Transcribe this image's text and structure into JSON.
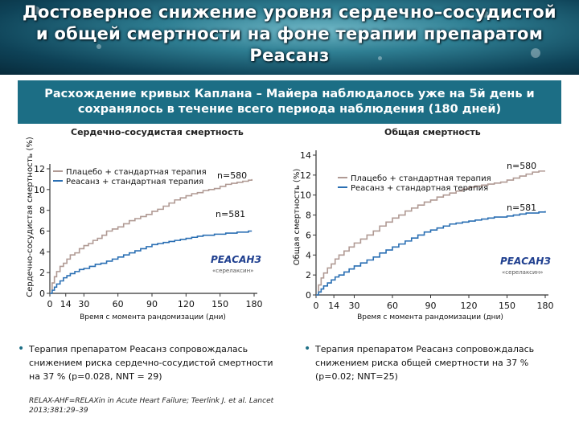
{
  "header": {
    "title_lines": [
      "Достоверное снижение уровня сердечно–сосудистой",
      "и общей смертности на фоне терапии препаратом",
      "Реасанз"
    ]
  },
  "banner": {
    "lines": [
      "Расхождение кривых Каплана – Майера наблюдалось уже на 5й день и",
      "сохранялось в течение всего периода наблюдения (180 дней)"
    ]
  },
  "colors": {
    "placebo": "#b09a94",
    "reasanz": "#2a6fb3",
    "banner": "#1c6e85",
    "axis": "#333333"
  },
  "chart_data": [
    {
      "type": "line",
      "title": "Сердечно-сосудистая смертность",
      "ylabel": "Сердечно-сосудистая смертность (%)",
      "xlabel": "Время с момента рандомизации (дни)",
      "xlim": [
        0,
        180
      ],
      "ylim": [
        0,
        12
      ],
      "xticks": [
        "0",
        "14",
        "30",
        "60",
        "90",
        "120",
        "150",
        "180"
      ],
      "xtick_values": [
        0,
        14,
        30,
        60,
        90,
        120,
        150,
        180
      ],
      "yticks": [
        "0",
        "2",
        "4",
        "6",
        "8",
        "10",
        "12"
      ],
      "ytick_values": [
        0,
        2,
        4,
        6,
        8,
        10,
        12
      ],
      "legend": [
        "Плацебо + стандартная терапия",
        "Реасанз + стандартная терапия"
      ],
      "logo": {
        "brand": "РЕАСАНЗ",
        "sub": "«серелаксин»"
      },
      "series": [
        {
          "name": "Плацебо + стандартная терапия",
          "n_label": "n=580",
          "x": [
            0,
            2,
            4,
            6,
            9,
            12,
            15,
            18,
            22,
            26,
            30,
            34,
            38,
            42,
            46,
            50,
            55,
            60,
            65,
            70,
            75,
            80,
            85,
            90,
            95,
            100,
            105,
            110,
            115,
            120,
            125,
            130,
            135,
            140,
            145,
            150,
            155,
            160,
            165,
            170,
            175,
            178
          ],
          "y": [
            0,
            1.0,
            1.6,
            2.1,
            2.6,
            2.9,
            3.3,
            3.7,
            3.9,
            4.3,
            4.6,
            4.8,
            5.1,
            5.3,
            5.6,
            6.0,
            6.2,
            6.4,
            6.7,
            7.0,
            7.2,
            7.4,
            7.6,
            7.9,
            8.1,
            8.4,
            8.7,
            9.0,
            9.2,
            9.4,
            9.6,
            9.7,
            9.9,
            10.0,
            10.1,
            10.3,
            10.5,
            10.6,
            10.7,
            10.8,
            10.9,
            11.0
          ]
        },
        {
          "name": "Реасанз + стандартная терапия",
          "n_label": "n=581",
          "x": [
            0,
            2,
            4,
            6,
            9,
            12,
            15,
            18,
            22,
            26,
            30,
            35,
            40,
            45,
            50,
            55,
            60,
            65,
            70,
            75,
            80,
            85,
            90,
            95,
            100,
            105,
            110,
            115,
            120,
            125,
            130,
            135,
            140,
            145,
            150,
            155,
            160,
            165,
            170,
            175,
            178
          ],
          "y": [
            0,
            0.3,
            0.6,
            0.9,
            1.2,
            1.5,
            1.7,
            1.9,
            2.1,
            2.3,
            2.4,
            2.6,
            2.8,
            2.9,
            3.1,
            3.3,
            3.5,
            3.7,
            3.9,
            4.1,
            4.3,
            4.5,
            4.7,
            4.8,
            4.9,
            5.0,
            5.1,
            5.2,
            5.3,
            5.4,
            5.5,
            5.6,
            5.6,
            5.7,
            5.7,
            5.8,
            5.8,
            5.9,
            5.9,
            6.0,
            6.0
          ]
        }
      ]
    },
    {
      "type": "line",
      "title": "Общая смертность",
      "ylabel": "Общая смертность (%)",
      "xlabel": "Время с момента рандомизации (дни)",
      "xlim": [
        0,
        180
      ],
      "ylim": [
        0,
        14
      ],
      "xticks": [
        "0",
        "14",
        "30",
        "60",
        "90",
        "120",
        "150",
        "180"
      ],
      "xtick_values": [
        0,
        14,
        30,
        60,
        90,
        120,
        150,
        180
      ],
      "yticks": [
        "0",
        "2",
        "4",
        "6",
        "8",
        "10",
        "12",
        "14"
      ],
      "ytick_values": [
        0,
        2,
        4,
        6,
        8,
        10,
        12,
        14
      ],
      "legend": [
        "Плацебо + стандартная терапия",
        "Реасанз + стандартная терапия"
      ],
      "logo": {
        "brand": "РЕАСАНЗ",
        "sub": "«серелаксин»"
      },
      "series": [
        {
          "name": "Плацебо + стандартная терапия",
          "n_label": "n=580",
          "x": [
            0,
            2,
            4,
            6,
            9,
            12,
            15,
            18,
            22,
            26,
            30,
            35,
            40,
            45,
            50,
            55,
            60,
            65,
            70,
            75,
            80,
            85,
            90,
            95,
            100,
            105,
            110,
            115,
            120,
            125,
            130,
            135,
            140,
            145,
            150,
            155,
            160,
            165,
            170,
            175,
            180
          ],
          "y": [
            0,
            1.0,
            1.7,
            2.2,
            2.7,
            3.1,
            3.6,
            4.0,
            4.4,
            4.8,
            5.2,
            5.6,
            6.0,
            6.4,
            6.9,
            7.3,
            7.7,
            8.0,
            8.4,
            8.7,
            9.0,
            9.3,
            9.5,
            9.8,
            10.0,
            10.2,
            10.4,
            10.6,
            10.8,
            10.9,
            11.0,
            11.1,
            11.2,
            11.3,
            11.5,
            11.7,
            11.9,
            12.1,
            12.3,
            12.4,
            12.4
          ]
        },
        {
          "name": "Реасанз + стандартная терапия",
          "n_label": "n=581",
          "x": [
            0,
            2,
            4,
            6,
            9,
            12,
            15,
            18,
            22,
            26,
            30,
            35,
            40,
            45,
            50,
            55,
            60,
            65,
            70,
            75,
            80,
            85,
            90,
            95,
            100,
            105,
            110,
            115,
            120,
            125,
            130,
            135,
            140,
            145,
            150,
            155,
            160,
            165,
            170,
            175,
            180
          ],
          "y": [
            0,
            0.3,
            0.6,
            0.9,
            1.2,
            1.5,
            1.8,
            2.0,
            2.3,
            2.6,
            2.9,
            3.2,
            3.5,
            3.8,
            4.2,
            4.5,
            4.8,
            5.1,
            5.4,
            5.7,
            6.0,
            6.3,
            6.5,
            6.7,
            6.9,
            7.1,
            7.2,
            7.3,
            7.4,
            7.5,
            7.6,
            7.7,
            7.8,
            7.8,
            7.9,
            8.0,
            8.1,
            8.2,
            8.2,
            8.3,
            8.4
          ]
        }
      ]
    }
  ],
  "bullets": [
    "Терапия препаратом Реасанз сопровождалась снижением риска сердечно-сосудистой смертности на 37 % (p=0.028, NNT = 29)",
    "Терапия препаратом Реасанз сопровождалась снижением риска общей смертности на 37 % (p=0.02; NNT=25)"
  ],
  "reference": "RELAX-AHF=RELAXin in Acute Heart Failure; Teerlink J. et al. Lancet 2013;381:29–39"
}
